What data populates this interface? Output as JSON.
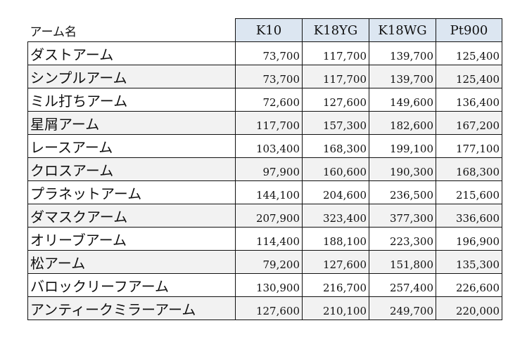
{
  "table": {
    "name_header": "アーム名",
    "metals": [
      "K10",
      "K18YG",
      "K18WG",
      "Pt900"
    ],
    "rows": [
      {
        "name": "ダストアーム",
        "prices": [
          "73,700",
          "117,700",
          "139,700",
          "125,400"
        ]
      },
      {
        "name": "シンプルアーム",
        "prices": [
          "73,700",
          "117,700",
          "139,700",
          "125,400"
        ]
      },
      {
        "name": "ミル打ちアーム",
        "prices": [
          "72,600",
          "127,600",
          "149,600",
          "136,400"
        ]
      },
      {
        "name": "星屑アーム",
        "prices": [
          "117,700",
          "157,300",
          "182,600",
          "167,200"
        ]
      },
      {
        "name": "レースアーム",
        "prices": [
          "103,400",
          "168,300",
          "199,100",
          "177,100"
        ]
      },
      {
        "name": "クロスアーム",
        "prices": [
          "97,900",
          "160,600",
          "190,300",
          "168,300"
        ]
      },
      {
        "name": "プラネットアーム",
        "prices": [
          "144,100",
          "204,600",
          "236,500",
          "215,600"
        ]
      },
      {
        "name": "ダマスクアーム",
        "prices": [
          "207,900",
          "323,400",
          "377,300",
          "336,600"
        ]
      },
      {
        "name": "オリーブアーム",
        "prices": [
          "114,400",
          "188,100",
          "223,300",
          "196,900"
        ]
      },
      {
        "name": "松アーム",
        "prices": [
          "79,200",
          "127,600",
          "151,800",
          "135,300"
        ]
      },
      {
        "name": "バロックリーフアーム",
        "prices": [
          "130,900",
          "216,700",
          "257,400",
          "226,600"
        ]
      },
      {
        "name": "アンティークミラーアーム",
        "prices": [
          "127,600",
          "210,100",
          "249,700",
          "220,000"
        ]
      }
    ]
  },
  "colors": {
    "header_fill": "#dce6f1",
    "stripe_fill": "#f2f2f2",
    "border": "#111111"
  }
}
